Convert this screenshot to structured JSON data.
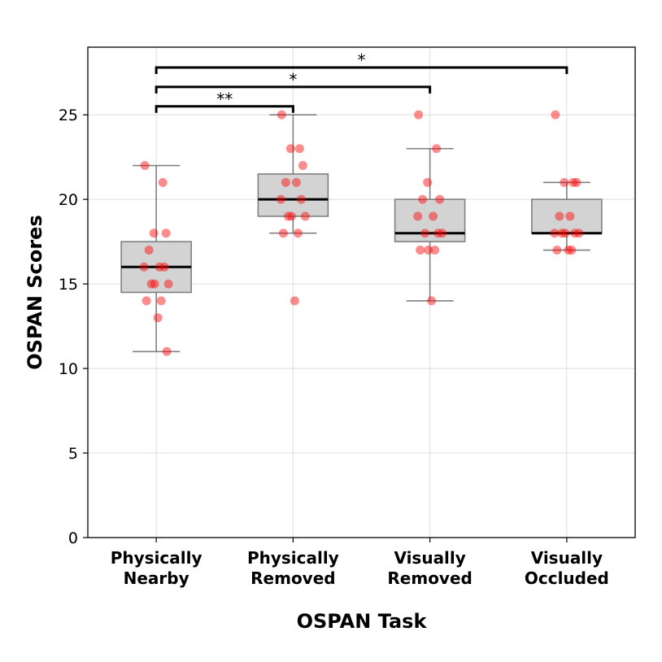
{
  "chart_data": {
    "type": "box",
    "xlabel": "OSPAN Task",
    "ylabel": "OSPAN Scores",
    "ylim": [
      0,
      29
    ],
    "yticks": [
      0,
      5,
      10,
      15,
      20,
      25
    ],
    "grid": true,
    "categories": [
      [
        "Physically",
        "Nearby"
      ],
      [
        "Physically",
        "Removed"
      ],
      [
        "Visually",
        "Removed"
      ],
      [
        "Visually",
        "Occluded"
      ]
    ],
    "boxes": [
      {
        "whisker_low": 11,
        "q1": 14.5,
        "median": 16,
        "q3": 17.5,
        "whisker_high": 22
      },
      {
        "whisker_low": 18,
        "q1": 19,
        "median": 20,
        "q3": 21.5,
        "whisker_high": 25
      },
      {
        "whisker_low": 14,
        "q1": 17.5,
        "median": 18,
        "q3": 20,
        "whisker_high": 23
      },
      {
        "whisker_low": 17,
        "q1": 18,
        "median": 18,
        "q3": 20,
        "whisker_high": 21
      }
    ],
    "points": [
      [
        22,
        21,
        18,
        18,
        17,
        16,
        16,
        16,
        15,
        15,
        15,
        14,
        14,
        13,
        11
      ],
      [
        25,
        23,
        23,
        22,
        21,
        21,
        20,
        20,
        19,
        19,
        19,
        18,
        18,
        14
      ],
      [
        25,
        23,
        21,
        20,
        20,
        19,
        19,
        18,
        18,
        18,
        17,
        17,
        17,
        14
      ],
      [
        25,
        21,
        21,
        21,
        19,
        19,
        18,
        18,
        18,
        18,
        18,
        17,
        17,
        17
      ]
    ],
    "significance": [
      {
        "from": 0,
        "to": 1,
        "label": "**",
        "y": 25.5
      },
      {
        "from": 0,
        "to": 2,
        "label": "*",
        "y": 26.65
      },
      {
        "from": 0,
        "to": 3,
        "label": "*",
        "y": 27.8
      }
    ],
    "colors": {
      "box_fill": "#d3d3d3",
      "box_edge": "#808080",
      "median": "#000000",
      "points": "#ff0000",
      "grid": "#dddddd"
    }
  }
}
